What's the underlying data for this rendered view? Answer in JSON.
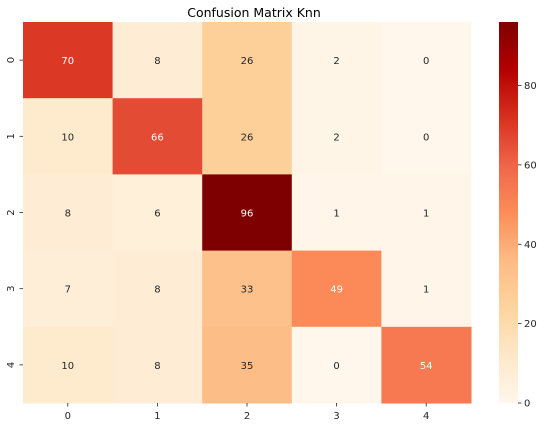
{
  "chart_data": {
    "type": "heatmap",
    "title": "Confusion Matrix Knn",
    "xlabel": "",
    "ylabel": "",
    "x_categories": [
      "0",
      "1",
      "2",
      "3",
      "4"
    ],
    "y_categories": [
      "0",
      "1",
      "2",
      "3",
      "4"
    ],
    "values": [
      [
        70,
        8,
        26,
        2,
        0
      ],
      [
        10,
        66,
        26,
        2,
        0
      ],
      [
        8,
        6,
        96,
        1,
        1
      ],
      [
        7,
        8,
        33,
        49,
        1
      ],
      [
        10,
        8,
        35,
        0,
        54
      ]
    ],
    "colormap": "OrRd",
    "colorbar": {
      "min": 0,
      "max": 96,
      "ticks": [
        0,
        20,
        40,
        60,
        80
      ],
      "tick_labels": [
        "0",
        "20",
        "40",
        "60",
        "80"
      ]
    },
    "colors": {
      "cmap_stops": [
        "#fff7ec",
        "#fee8c8",
        "#fdd49e",
        "#fdbb84",
        "#fc8d59",
        "#ef6548",
        "#d7301f",
        "#b30000",
        "#7f0000"
      ],
      "light_text": "#ffffff",
      "dark_text": "#262626"
    }
  }
}
